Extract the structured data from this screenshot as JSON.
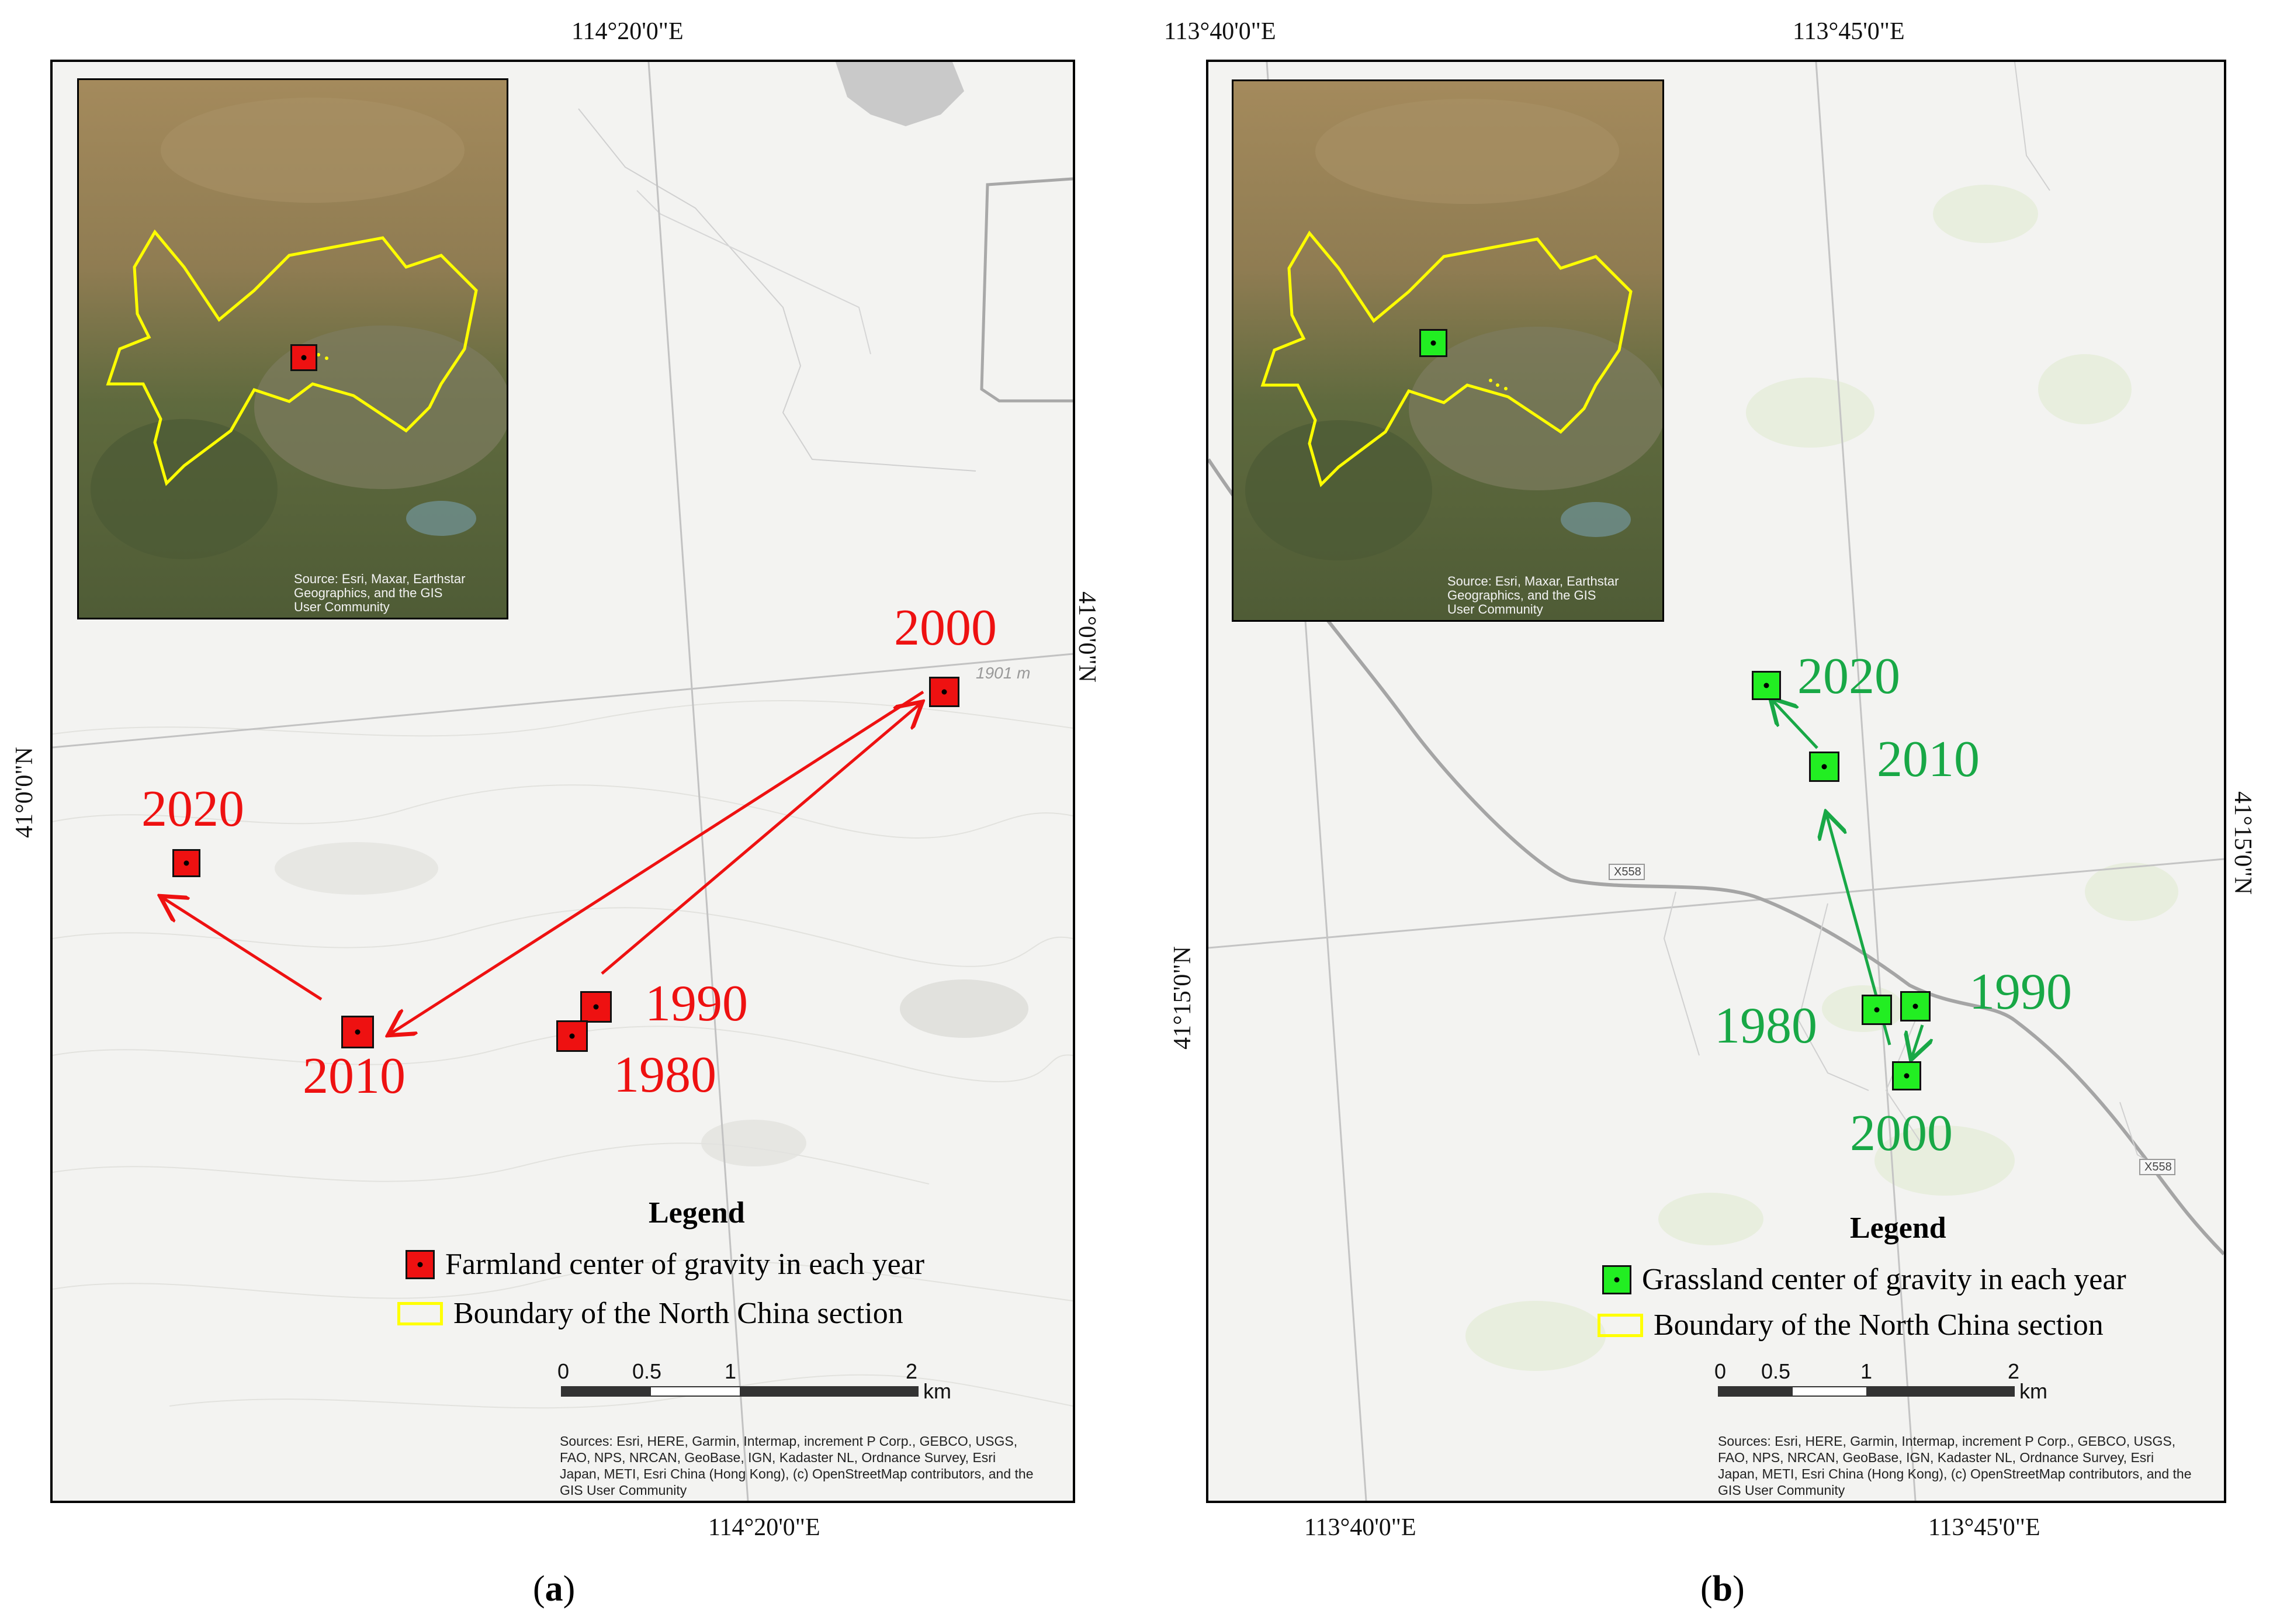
{
  "panels": {
    "a": {
      "caption_open": "(",
      "caption_letter": "a",
      "caption_close": ")",
      "top_lon": "114°20'0\"E",
      "bottom_lon": "114°20'0\"E",
      "left_lat": "41°0'0\"N",
      "right_lat": "41°0'0\"N",
      "contour_label": "1901 m",
      "years": {
        "y2000": "2000",
        "y2020": "2020",
        "y1990": "1990",
        "y2010": "2010",
        "y1980": "1980"
      },
      "legend": {
        "title": "Legend",
        "item1": "Farmland center of gravity in each year",
        "item2": "Boundary of the North China section"
      },
      "scale": {
        "t0": "0",
        "t05": "0.5",
        "t1": "1",
        "t2": "2",
        "unit": "km"
      },
      "inset_credit": "Source: Esri, Maxar, Earthstar\nGeographics, and the GIS\nUser Community",
      "sources": "Sources: Esri, HERE, Garmin, Intermap, increment P Corp., GEBCO, USGS, FAO, NPS, NRCAN, GeoBase, IGN, Kadaster NL, Ordnance Survey, Esri Japan, METI, Esri China (Hong Kong), (c) OpenStreetMap contributors, and the GIS User Community",
      "marker_color": "#ee1111",
      "arrow_color": "#ee1111"
    },
    "b": {
      "caption_open": "(",
      "caption_letter": "b",
      "caption_close": ")",
      "top_lon_1": "113°40'0\"E",
      "top_lon_2": "113°45'0\"E",
      "bottom_lon_1": "113°40'0\"E",
      "bottom_lon_2": "113°45'0\"E",
      "left_lat": "41°15'0\"N",
      "right_lat": "41°15'0\"N",
      "road_label_1": "X558",
      "road_label_2": "X558",
      "years": {
        "y2020": "2020",
        "y2010": "2010",
        "y1980": "1980",
        "y1990": "1990",
        "y2000": "2000"
      },
      "legend": {
        "title": "Legend",
        "item1": "Grassland center of gravity in each year",
        "item2": "Boundary of the North China section"
      },
      "scale": {
        "t0": "0",
        "t05": "0.5",
        "t1": "1",
        "t2": "2",
        "unit": "km"
      },
      "inset_credit": "Source: Esri, Maxar, Earthstar\nGeographics, and the GIS\nUser Community",
      "sources": "Sources: Esri, HERE, Garmin, Intermap, increment P Corp., GEBCO, USGS, FAO, NPS, NRCAN, GeoBase, IGN, Kadaster NL, Ordnance Survey, Esri Japan, METI, Esri China (Hong Kong), (c) OpenStreetMap contributors, and the GIS User Community",
      "marker_color": "#22ee22",
      "arrow_color": "#18a846"
    },
    "boundary_color": "#ffff00"
  }
}
